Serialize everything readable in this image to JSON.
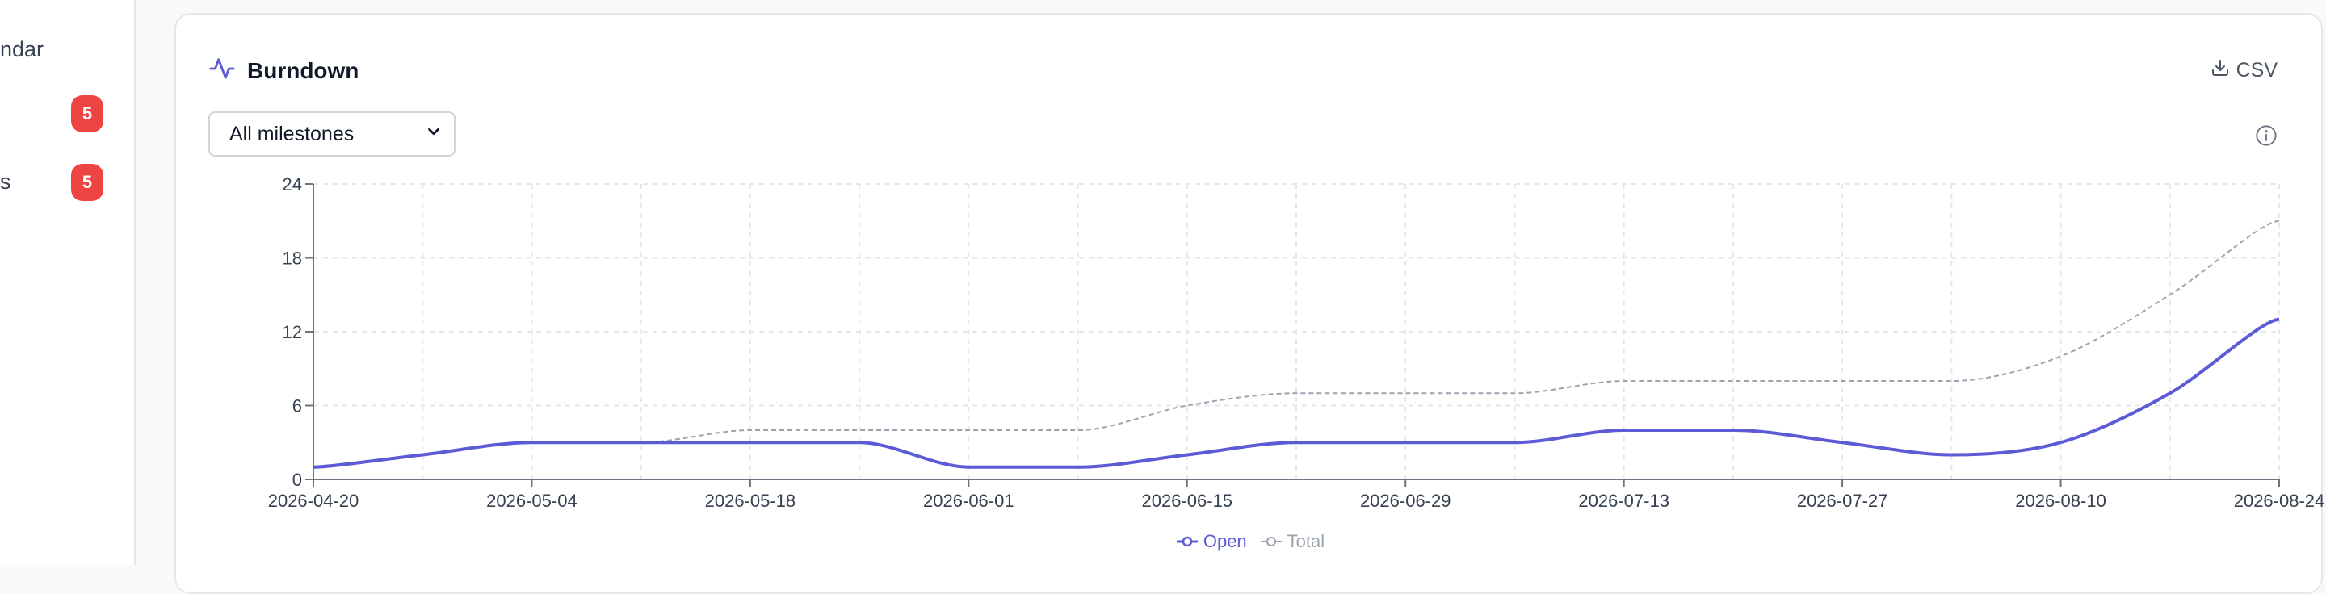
{
  "sidebar": {
    "items": [
      {
        "label": "ndar",
        "badge": ""
      },
      {
        "label": "",
        "badge": "5"
      },
      {
        "label": "s",
        "badge": "5"
      }
    ]
  },
  "card": {
    "title": "Burndown",
    "csv_label": "CSV",
    "select": {
      "value": "All milestones"
    },
    "icons": {
      "title": "activity-icon",
      "csv": "download-icon",
      "info": "info-icon",
      "select": "chevron-down-icon"
    }
  },
  "colors": {
    "open": "#5b5bd6",
    "total": "#9ca3af",
    "badge": "#ef4444",
    "grid": "#e5e7eb",
    "axis": "#6b7280"
  },
  "chart_data": {
    "type": "line",
    "title": "",
    "xlabel": "",
    "ylabel": "",
    "x_ticks": [
      "2026-04-20",
      "2026-05-04",
      "2026-05-18",
      "2026-06-01",
      "2026-06-15",
      "2026-06-29",
      "2026-07-13",
      "2026-07-27",
      "2026-08-10",
      "2026-08-24"
    ],
    "y_ticks": [
      0,
      6,
      12,
      18,
      24
    ],
    "ylim": [
      0,
      24
    ],
    "grid": true,
    "legend": "bottom-center",
    "x": [
      "2026-04-20",
      "2026-04-27",
      "2026-05-04",
      "2026-05-11",
      "2026-05-18",
      "2026-05-25",
      "2026-06-01",
      "2026-06-08",
      "2026-06-15",
      "2026-06-22",
      "2026-06-29",
      "2026-07-06",
      "2026-07-13",
      "2026-07-20",
      "2026-07-27",
      "2026-08-03",
      "2026-08-10",
      "2026-08-17",
      "2026-08-24"
    ],
    "series": [
      {
        "name": "Open",
        "values": [
          1,
          2,
          3,
          3,
          3,
          3,
          1,
          1,
          2,
          3,
          3,
          3,
          4,
          4,
          3,
          2,
          3,
          7,
          13
        ]
      },
      {
        "name": "Total",
        "values": [
          1,
          2,
          3,
          3,
          4,
          4,
          4,
          4,
          6,
          7,
          7,
          7,
          8,
          8,
          8,
          8,
          10,
          15,
          21
        ]
      }
    ]
  }
}
